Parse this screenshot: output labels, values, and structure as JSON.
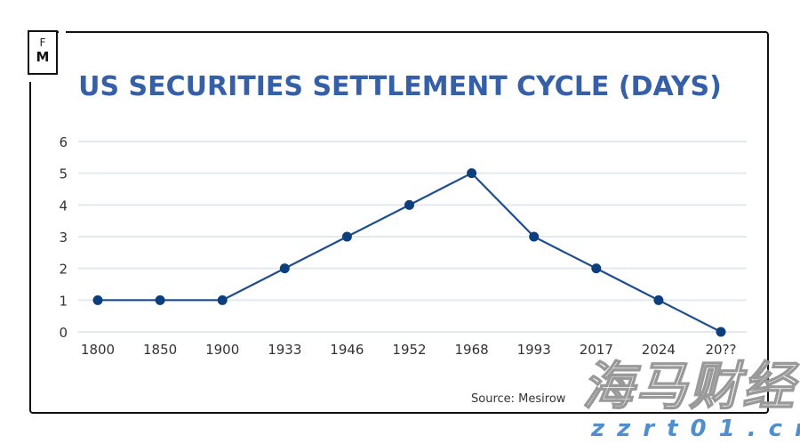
{
  "logo": {
    "line1": "F",
    "line2": "M"
  },
  "source": "Source: Mesirow",
  "watermark": {
    "text": "海马财经",
    "url": "zzrt01.cn"
  },
  "colors": {
    "title": "#3560a8",
    "line": "#1f4e8c",
    "grid": "#e3e9ee"
  },
  "chart_data": {
    "type": "line",
    "title": "US SECURITIES SETTLEMENT CYCLE (DAYS)",
    "categories": [
      "1800",
      "1850",
      "1900",
      "1933",
      "1946",
      "1952",
      "1968",
      "1993",
      "2017",
      "2024",
      "20??"
    ],
    "series": [
      {
        "values": [
          1,
          1,
          1,
          2,
          3,
          4,
          5,
          3,
          2,
          1,
          0
        ]
      }
    ],
    "ylim": [
      0,
      6
    ],
    "yticks": [
      0,
      1,
      2,
      3,
      4,
      5,
      6
    ],
    "grid": true,
    "legend": "none"
  }
}
